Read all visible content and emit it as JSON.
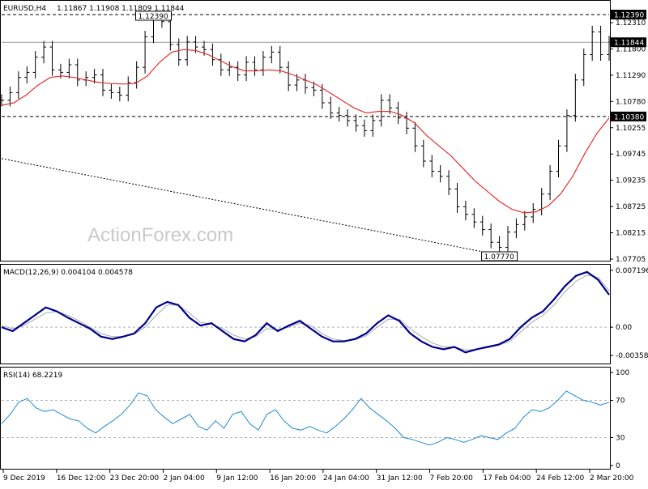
{
  "header": {
    "symbol_label": "EURUSD,H4",
    "ohlc_label": "1.11867 1.11908 1.11809 1.11844"
  },
  "watermark": "ActionForex.com",
  "colors": {
    "price_line": "#000000",
    "sma": "#e03030",
    "macd_line": "#00008b",
    "signal_line": "#a9a9a9",
    "rsi": "#1e8ad2",
    "grid": "#b0b0b0"
  },
  "chart_data": [
    {
      "type": "candlestick",
      "panel": "price",
      "title": "EURUSD,H4",
      "ylim": [
        1.076,
        1.1255
      ],
      "yticks": [
        "1.12310",
        "1.11800",
        "1.11290",
        "1.10780",
        "1.10255",
        "1.09745",
        "1.09235",
        "1.08725",
        "1.08215",
        "1.07705"
      ],
      "xticks": [
        "9 Dec 2019",
        "16 Dec 12:00",
        "23 Dec 20:00",
        "2 Jan 04:00",
        "9 Jan 12:00",
        "16 Jan 20:00",
        "24 Jan 04:00",
        "31 Jan 12:00",
        "7 Feb 20:00",
        "17 Feb 04:00",
        "24 Feb 12:00",
        "2 Mar 20:00"
      ],
      "price_series": [
        1.107,
        1.1085,
        1.1115,
        1.1125,
        1.1155,
        1.1175,
        1.113,
        1.1125,
        1.114,
        1.111,
        1.1115,
        1.112,
        1.109,
        1.1085,
        1.108,
        1.1105,
        1.1135,
        1.1195,
        1.123,
        1.1225,
        1.118,
        1.115,
        1.1185,
        1.1175,
        1.117,
        1.115,
        1.113,
        1.1135,
        1.112,
        1.1145,
        1.113,
        1.1155,
        1.1165,
        1.1135,
        1.11,
        1.111,
        1.1095,
        1.109,
        1.1065,
        1.1045,
        1.104,
        1.103,
        1.102,
        1.101,
        1.103,
        1.107,
        1.1055,
        1.1035,
        1.1015,
        1.098,
        1.095,
        1.093,
        1.092,
        1.0895,
        1.086,
        1.0845,
        1.083,
        1.0815,
        1.079,
        1.078,
        1.081,
        1.0825,
        1.084,
        1.0855,
        1.0885,
        1.093,
        1.098,
        1.104,
        1.111,
        1.116,
        1.1205,
        1.116,
        1.1185
      ],
      "sma_series": [
        1.106,
        1.1065,
        1.108,
        1.11,
        1.1115,
        1.1118,
        1.1115,
        1.111,
        1.1105,
        1.1103,
        1.1102,
        1.1103,
        1.1118,
        1.1145,
        1.1165,
        1.117,
        1.1168,
        1.116,
        1.1148,
        1.1136,
        1.1128,
        1.1128,
        1.113,
        1.1128,
        1.112,
        1.111,
        1.11,
        1.1085,
        1.107,
        1.1055,
        1.1045,
        1.1048,
        1.1048,
        1.104,
        1.1025,
        1.1,
        1.098,
        1.096,
        1.0935,
        1.091,
        1.089,
        1.087,
        1.0855,
        1.0848,
        1.085,
        1.0862,
        1.0885,
        1.092,
        1.0965,
        1.1005,
        1.1035
      ],
      "sma_start_index": 0,
      "long_ma": {
        "start": 1.0955,
        "end": 1.077
      },
      "horizontal_levels": [
        {
          "value": 1.1239,
          "label": "1.12390",
          "style": "dashed"
        },
        {
          "value": 1.11844,
          "label": "1.11844",
          "style": "solid"
        },
        {
          "value": 1.1038,
          "label": "1.10380",
          "style": "dashed"
        }
      ],
      "annotations": [
        {
          "text": "1.12390",
          "at_index": 18
        },
        {
          "text": "1.07770",
          "at_index": 59
        }
      ]
    },
    {
      "type": "line",
      "panel": "macd",
      "title": "MACD(12,26,9) 0.004104 0.004578",
      "ylim": [
        -0.0045,
        0.0078
      ],
      "yticks": [
        "0.007196",
        "0.00",
        "-0.003585"
      ],
      "series": [
        {
          "name": "MACD",
          "values": [
            0.0,
            -0.0005,
            0.0005,
            0.0015,
            0.0025,
            0.002,
            0.0012,
            0.0005,
            -0.0002,
            -0.0012,
            -0.0015,
            -0.0012,
            -0.0008,
            0.0005,
            0.0025,
            0.0032,
            0.0028,
            0.0012,
            0.0002,
            0.0005,
            -0.0005,
            -0.0015,
            -0.0018,
            -0.001,
            0.0005,
            -0.0005,
            0.0002,
            0.0008,
            -0.0002,
            -0.0012,
            -0.0018,
            -0.0018,
            -0.0015,
            -0.0008,
            0.0005,
            0.0015,
            0.0008,
            -0.0008,
            -0.0018,
            -0.0025,
            -0.0028,
            -0.0025,
            -0.0032,
            -0.0028,
            -0.0025,
            -0.0022,
            -0.0015,
            0.0,
            0.0012,
            0.002,
            0.0035,
            0.0052,
            0.0065,
            0.007,
            0.006,
            0.0041
          ]
        },
        {
          "name": "Signal",
          "values": [
            0.0002,
            -0.0002,
            0.0002,
            0.001,
            0.0018,
            0.002,
            0.0015,
            0.0008,
            0.0,
            -0.0008,
            -0.0012,
            -0.0012,
            -0.0009,
            0.0,
            0.0015,
            0.0028,
            0.0028,
            0.0018,
            0.0006,
            0.0004,
            -0.0002,
            -0.001,
            -0.0015,
            -0.0012,
            -0.0002,
            -0.0003,
            0.0,
            0.0005,
            0.0002,
            -0.0008,
            -0.0015,
            -0.0017,
            -0.0016,
            -0.0011,
            0.0,
            0.001,
            0.001,
            -0.0002,
            -0.0012,
            -0.002,
            -0.0025,
            -0.0025,
            -0.0029,
            -0.0028,
            -0.0026,
            -0.0023,
            -0.0018,
            -0.0006,
            0.0006,
            0.0015,
            0.0028,
            0.0045,
            0.0058,
            0.0066,
            0.0063,
            0.0046
          ]
        }
      ]
    },
    {
      "type": "line",
      "panel": "rsi",
      "title": "RSI(14) 68.2219",
      "ylim": [
        0,
        100
      ],
      "yticks": [
        "100",
        "70",
        "30",
        "0"
      ],
      "levels": [
        70,
        30
      ],
      "series": [
        {
          "name": "RSI",
          "values": [
            45,
            55,
            68,
            72,
            62,
            58,
            60,
            55,
            50,
            48,
            40,
            35,
            42,
            48,
            55,
            65,
            78,
            75,
            60,
            52,
            45,
            50,
            55,
            42,
            38,
            48,
            40,
            55,
            58,
            45,
            38,
            55,
            60,
            48,
            40,
            38,
            42,
            38,
            35,
            42,
            50,
            60,
            72,
            62,
            55,
            48,
            40,
            30,
            28,
            25,
            22,
            25,
            30,
            28,
            25,
            28,
            32,
            30,
            28,
            35,
            40,
            52,
            60,
            58,
            62,
            70,
            80,
            75,
            70,
            68,
            65,
            68
          ]
        }
      ]
    }
  ]
}
